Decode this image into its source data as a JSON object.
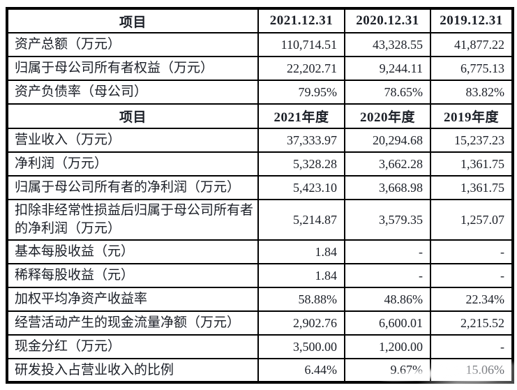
{
  "colors": {
    "text": "#1b1f27",
    "border": "#000000",
    "background": "#ffffff"
  },
  "table": {
    "sections": [
      {
        "header": {
          "item_label": "项目",
          "cols": [
            "2021.12.31",
            "2020.12.31",
            "2019.12.31"
          ]
        },
        "rows": [
          {
            "label": "资产总额（万元）",
            "values": [
              "110,714.51",
              "43,328.55",
              "41,877.22"
            ]
          },
          {
            "label": "归属于母公司所有者权益（万元）",
            "values": [
              "22,202.71",
              "9,244.11",
              "6,775.13"
            ]
          },
          {
            "label": "资产负债率（母公司）",
            "values": [
              "79.95%",
              "78.65%",
              "83.82%"
            ]
          }
        ]
      },
      {
        "header": {
          "item_label": "项目",
          "cols": [
            "2021年度",
            "2020年度",
            "2019年度"
          ]
        },
        "rows": [
          {
            "label": "营业收入（万元）",
            "values": [
              "37,333.97",
              "20,294.68",
              "15,237.23"
            ]
          },
          {
            "label": "净利润（万元）",
            "values": [
              "5,328.28",
              "3,662.28",
              "1,361.75"
            ]
          },
          {
            "label": "归属于母公司所有者的净利润（万元）",
            "values": [
              "5,423.10",
              "3,668.98",
              "1,361.75"
            ]
          },
          {
            "label": "扣除非经常性损益后归属于母公司所有者的净利润（万元）",
            "values": [
              "5,214.87",
              "3,579.35",
              "1,257.07"
            ],
            "double": true
          },
          {
            "label": "基本每股收益（元）",
            "values": [
              "1.84",
              "-",
              "-"
            ]
          },
          {
            "label": "稀释每股收益（元）",
            "values": [
              "1.84",
              "-",
              "-"
            ]
          },
          {
            "label": "加权平均净资产收益率",
            "values": [
              "58.88%",
              "48.86%",
              "22.34%"
            ]
          },
          {
            "label": "经营活动产生的现金流量净额（万元）",
            "values": [
              "2,902.76",
              "6,600.01",
              "2,215.52"
            ]
          },
          {
            "label": "现金分红（万元）",
            "values": [
              "3,500.00",
              "1,200.00",
              "-"
            ]
          },
          {
            "label": "研发投入占营业收入的比例",
            "values": [
              "6.44%",
              "9.67%",
              "15.06%"
            ]
          }
        ]
      }
    ]
  }
}
